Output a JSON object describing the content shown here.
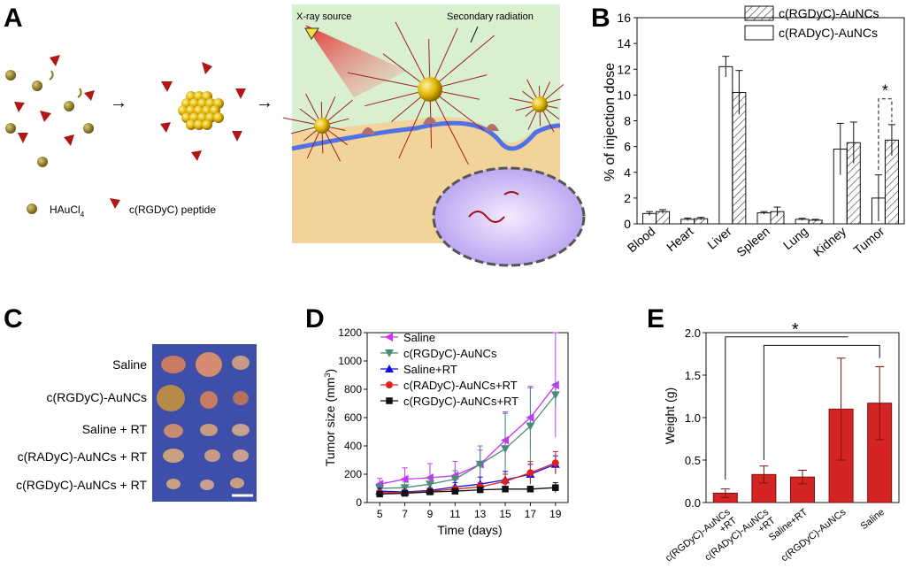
{
  "panels": {
    "A": "A",
    "B": "B",
    "C": "C",
    "D": "D",
    "E": "E"
  },
  "schematic": {
    "legend_haucl4": "HAuCl",
    "legend_haucl4_sub": "4",
    "legend_peptide": "c(RGDyC) peptide",
    "xray_label": "X-ray source",
    "secondary_label": "Secondary radiation"
  },
  "photo_labels": [
    "Saline",
    "c(RGDyC)-AuNCs",
    "Saline + RT",
    "c(RADyC)-AuNCs + RT",
    "c(RGDyC)-AuNCs + RT"
  ],
  "chart_data": [
    {
      "id": "B",
      "type": "bar",
      "ylabel": "% of injection dose",
      "ylim": [
        0,
        16
      ],
      "yticks": [
        0,
        2,
        4,
        6,
        8,
        10,
        12,
        14,
        16
      ],
      "categories": [
        "Blood",
        "Heart",
        "Liver",
        "Spleen",
        "Lung",
        "Kidney",
        "Tumor"
      ],
      "series": [
        {
          "name": "c(RADyC)-AuNCs",
          "pattern": "open",
          "values": [
            0.8,
            0.35,
            12.2,
            0.85,
            0.35,
            5.8,
            2.0
          ],
          "errors": [
            0.15,
            0.1,
            0.8,
            0.1,
            0.08,
            2.0,
            1.8
          ]
        },
        {
          "name": "c(RGDyC)-AuNCs",
          "pattern": "hatched",
          "values": [
            0.95,
            0.4,
            10.2,
            0.95,
            0.28,
            6.3,
            6.5
          ],
          "errors": [
            0.15,
            0.1,
            1.7,
            0.35,
            0.07,
            1.6,
            1.2
          ]
        }
      ],
      "annotation": "*"
    },
    {
      "id": "D",
      "type": "line",
      "xlabel": "Time (days)",
      "ylabel": "Tumor size (mm",
      "ylabel_sup": "3",
      "ylabel_end": ")",
      "x": [
        5,
        7,
        9,
        11,
        13,
        15,
        17,
        19
      ],
      "xlim": [
        4,
        20
      ],
      "ylim": [
        0,
        1200
      ],
      "yticks": [
        0,
        200,
        400,
        600,
        800,
        1000,
        1200
      ],
      "series": [
        {
          "name": "Saline",
          "color": "#cc33ff",
          "marker": "triangle-left",
          "values": [
            130,
            165,
            175,
            190,
            270,
            440,
            600,
            830
          ],
          "errors": [
            40,
            80,
            100,
            100,
            100,
            200,
            220,
            370
          ]
        },
        {
          "name": "c(RGDyC)-AuNCs",
          "color": "#4a8c7a",
          "marker": "triangle-down",
          "values": [
            100,
            105,
            130,
            165,
            270,
            380,
            540,
            760
          ],
          "errors": [
            30,
            40,
            50,
            60,
            130,
            250,
            270,
            80
          ]
        },
        {
          "name": "Saline+RT",
          "color": "#1010e0",
          "marker": "triangle-up",
          "values": [
            80,
            75,
            85,
            110,
            130,
            160,
            200,
            270
          ],
          "errors": [
            20,
            15,
            20,
            30,
            50,
            60,
            70,
            60
          ]
        },
        {
          "name": "c(RADyC)-AuNCs+RT",
          "color": "#e02020",
          "marker": "circle",
          "values": [
            70,
            70,
            80,
            95,
            110,
            150,
            210,
            280
          ],
          "errors": [
            15,
            15,
            15,
            20,
            30,
            50,
            80,
            80
          ]
        },
        {
          "name": "c(RGDyC)-AuNCs+RT",
          "color": "#111111",
          "marker": "square",
          "values": [
            60,
            65,
            75,
            80,
            90,
            95,
            95,
            105
          ],
          "errors": [
            10,
            10,
            10,
            15,
            15,
            15,
            20,
            35
          ]
        }
      ]
    },
    {
      "id": "E",
      "type": "bar",
      "ylabel": "Weight (g)",
      "ylim": [
        0,
        2.0
      ],
      "yticks": [
        "0.0",
        "0.5",
        "1.0",
        "1.5",
        "2.0"
      ],
      "categories": [
        "c(RGDyC)-AuNCs +RT",
        "c(RADyC)-AuNCs +RT",
        "Saline+RT",
        "c(RGDyC)-AuNCs",
        "Saline"
      ],
      "values": [
        0.11,
        0.33,
        0.3,
        1.1,
        1.17
      ],
      "errors": [
        0.05,
        0.1,
        0.08,
        0.6,
        0.43
      ],
      "color": "#d42424",
      "annotation": "*"
    }
  ]
}
